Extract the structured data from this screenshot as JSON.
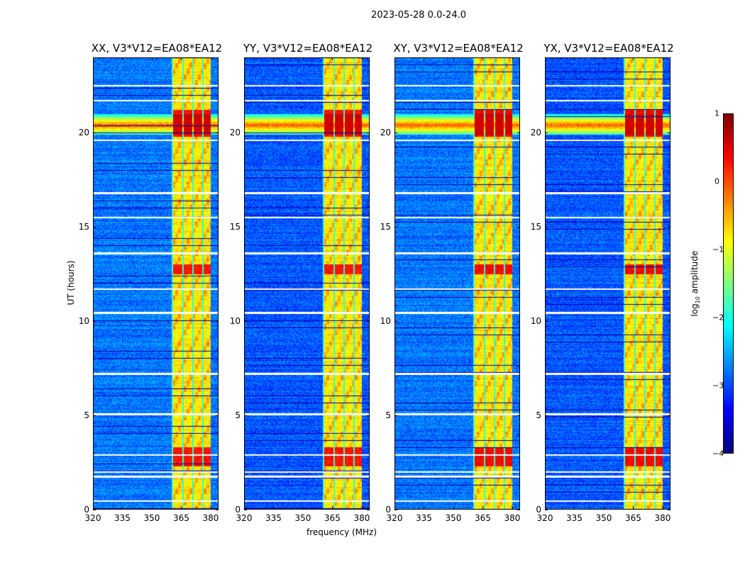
{
  "suptitle": "2023-05-28 0.0-24.0",
  "chart_data": {
    "type": "heatmap",
    "panels": [
      {
        "title": "XX, V3*V12=EA08*EA12"
      },
      {
        "title": "YY, V3*V12=EA08*EA12"
      },
      {
        "title": "XY, V3*V12=EA08*EA12"
      },
      {
        "title": "YX, V3*V12=EA08*EA12"
      }
    ],
    "xlabel": "frequency (MHz)",
    "ylabel": "UT (hours)",
    "xlim": [
      320,
      384
    ],
    "ylim": [
      0,
      24
    ],
    "xticks": [
      "320",
      "335",
      "350",
      "365",
      "380"
    ],
    "xtick_values": [
      320,
      335,
      350,
      365,
      380
    ],
    "yticks": [
      "0",
      "5",
      "10",
      "15",
      "20"
    ],
    "ytick_values": [
      0,
      5,
      10,
      15,
      20
    ],
    "colorbar": {
      "label_prefix": "log",
      "label_sub": "10",
      "label_suffix": " amplitude",
      "ticks": [
        "1",
        "0",
        "−1",
        "−2",
        "−3",
        "−4"
      ],
      "tick_values": [
        1,
        0,
        -1,
        -2,
        -3,
        -4
      ],
      "range": [
        -4,
        1
      ],
      "colormap": "jet"
    },
    "description_values": {
      "background_level": -2.8,
      "band_MHz": [
        361,
        380
      ],
      "band_level": -0.8,
      "rfi_hours": [
        [
          2.3,
          3.3
        ],
        [
          12.5,
          13.0
        ],
        [
          19.8,
          21.2
        ]
      ],
      "flagged_hours": [
        0.45,
        1.75,
        2.0,
        2.9,
        5.05,
        7.2,
        10.45,
        11.7,
        13.6,
        15.5,
        16.8,
        19.6,
        21.7,
        22.5
      ]
    }
  }
}
